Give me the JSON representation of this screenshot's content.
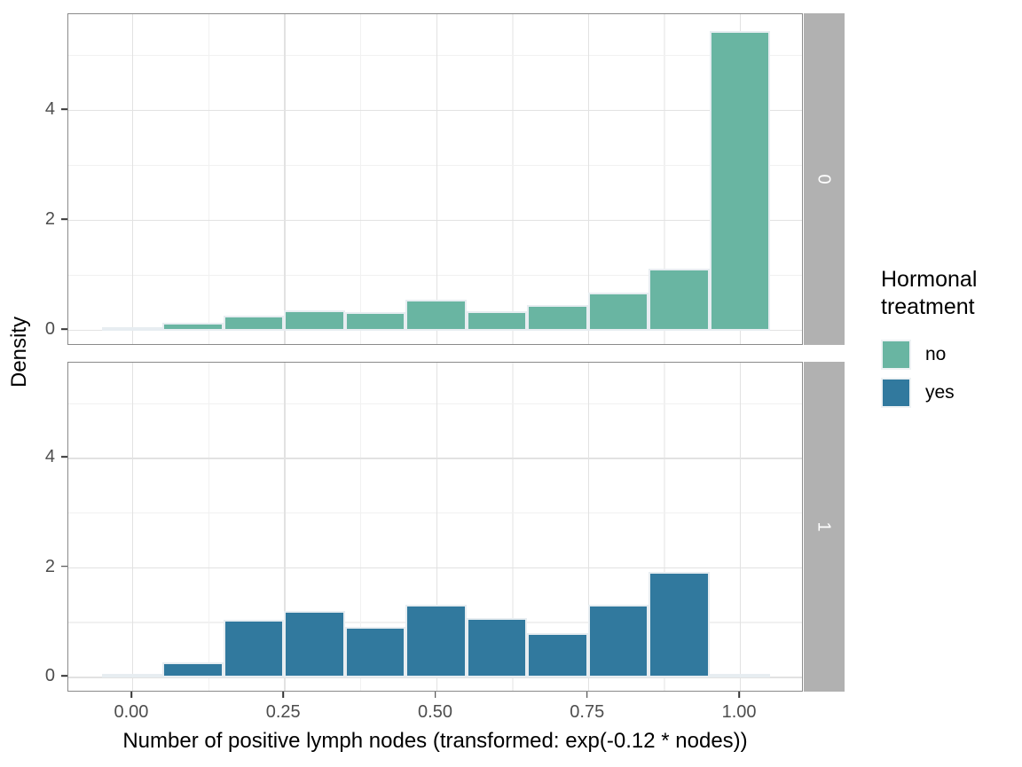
{
  "chart_data": {
    "type": "bar",
    "subtype": "faceted-histogram",
    "xlabel": "Number of positive lymph nodes (transformed: exp(-0.12 * nodes))",
    "ylabel": "Density",
    "x_tick_labels": [
      "0.00",
      "0.25",
      "0.50",
      "0.75",
      "1.00"
    ],
    "x_tick_values": [
      0.0,
      0.25,
      0.5,
      0.75,
      1.0
    ],
    "x_minor_values": [
      0.125,
      0.375,
      0.625,
      0.875
    ],
    "y_tick_labels": [
      "0",
      "2",
      "4"
    ],
    "y_tick_values": [
      0,
      2,
      4
    ],
    "y_minor_values": [
      1,
      3,
      5
    ],
    "x_domain": [
      -0.105,
      1.105
    ],
    "y_domain": [
      -0.29,
      5.74
    ],
    "bins": {
      "start": -0.05,
      "width": 0.1,
      "centers": [
        0.0,
        0.1,
        0.2,
        0.3,
        0.4,
        0.5,
        0.6,
        0.7,
        0.8,
        0.9,
        1.0
      ]
    },
    "facets": [
      {
        "label": "0",
        "series": "no",
        "fill": "#69b5a2",
        "densities": [
          0.02,
          0.13,
          0.26,
          0.37,
          0.33,
          0.55,
          0.35,
          0.46,
          0.68,
          1.12,
          5.45
        ]
      },
      {
        "label": "1",
        "series": "yes",
        "fill": "#31799e",
        "densities": [
          0.02,
          0.27,
          1.05,
          1.21,
          0.92,
          1.32,
          1.08,
          0.8,
          1.32,
          1.93,
          0.02
        ]
      }
    ],
    "legend": {
      "title_lines": [
        "Hormonal",
        "treatment"
      ],
      "entries": [
        {
          "label": "no",
          "color": "#69b5a2"
        },
        {
          "label": "yes",
          "color": "#31799e"
        }
      ],
      "position": "right"
    },
    "grid": "on",
    "panel_border_color": "#8a8a8a",
    "strip_color": "#b1b1b1",
    "bar_outline_color": "#e7edf1"
  }
}
